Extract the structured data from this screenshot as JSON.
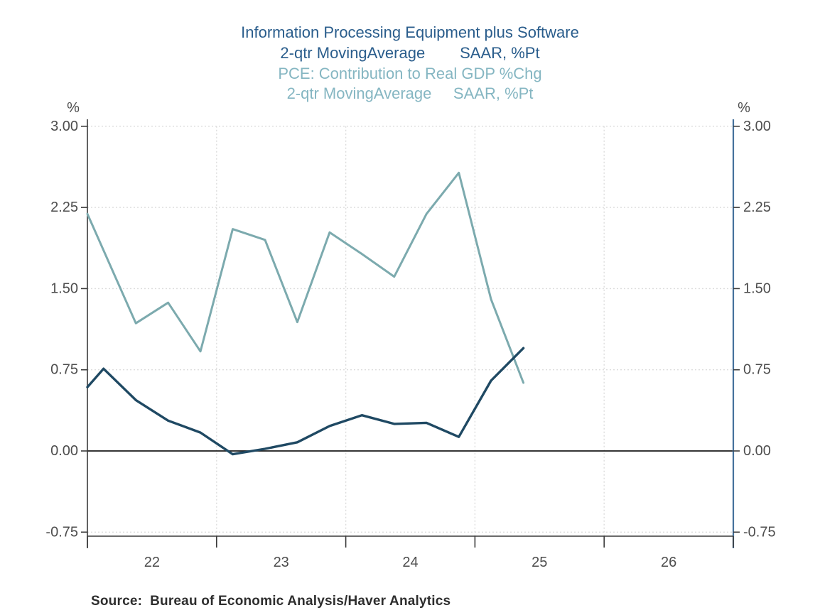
{
  "titles": {
    "line1": "Information Processing Equipment plus Software",
    "line2": "2-qtr MovingAverage        SAAR, %Pt",
    "line3": "PCE: Contribution to Real GDP %Chg",
    "line4": "2-qtr MovingAverage     SAAR, %Pt"
  },
  "source": {
    "label": "Source:  Bureau of Economic Analysis/Haver Analytics"
  },
  "colors": {
    "title_primary": "#2a5d8c",
    "title_secondary": "#85b6c2",
    "series_dark": "#1f4963",
    "series_light": "#7caaae",
    "axis_dark": "#3a3a3a",
    "axis_right_blue": "#44719c",
    "zero_line": "#1a1a1a",
    "gridline": "#dcdcdc",
    "tick_label": "#4d4d4d",
    "source_text": "#2e2e2e"
  },
  "chart_data": {
    "type": "line",
    "title": "Information Processing Equipment plus Software 2-qtr MovingAverage SAAR, %Pt",
    "subtitle": "PCE: Contribution to Real GDP %Chg 2-qtr MovingAverage SAAR, %Pt",
    "axis_unit": "%",
    "y_tick_labels": [
      "3.00",
      "2.25",
      "1.50",
      "0.75",
      "0.00",
      "-0.75"
    ],
    "y_tick_values": [
      3.0,
      2.25,
      1.5,
      0.75,
      0.0,
      -0.75
    ],
    "ylim": [
      -0.79,
      3.06
    ],
    "x_year_labels": [
      "22",
      "23",
      "24",
      "25",
      "26"
    ],
    "x_boundaaries_note": "vertical ticks/gridlines fall on year boundaries",
    "x_boundaries": [
      2021.5,
      2022.5,
      2023.5,
      2024.5,
      2025.5,
      2026.5
    ],
    "grid": "light dashed horizontal at each y tick, vertical at interior year boundaries",
    "legend_position": "none (color-coded titles act as legend)",
    "series": [
      {
        "name": "Information Processing Equipment plus Software, 2-qtr Moving Average, SAAR, %Pt",
        "color": "#1f4963",
        "x": [
          2021.5,
          2021.625,
          2021.875,
          2022.125,
          2022.375,
          2022.625,
          2022.875,
          2023.125,
          2023.375,
          2023.625,
          2023.875,
          2024.125,
          2024.375,
          2024.625,
          2024.875
        ],
        "values": [
          0.59,
          0.76,
          0.47,
          0.28,
          0.17,
          -0.03,
          0.02,
          0.08,
          0.23,
          0.33,
          0.25,
          0.26,
          0.13,
          0.65,
          0.95
        ]
      },
      {
        "name": "PCE: Contribution to Real GDP %Chg, 2-qtr Moving Average, SAAR, %Pt",
        "color": "#7caaae",
        "x": [
          2021.5,
          2021.875,
          2022.125,
          2022.375,
          2022.625,
          2022.875,
          2023.125,
          2023.375,
          2023.625,
          2023.875,
          2024.125,
          2024.375,
          2024.625,
          2024.875
        ],
        "values": [
          2.19,
          1.18,
          1.37,
          0.92,
          2.05,
          1.95,
          1.19,
          2.02,
          1.82,
          1.61,
          2.19,
          2.57,
          1.4,
          0.63
        ]
      }
    ]
  }
}
